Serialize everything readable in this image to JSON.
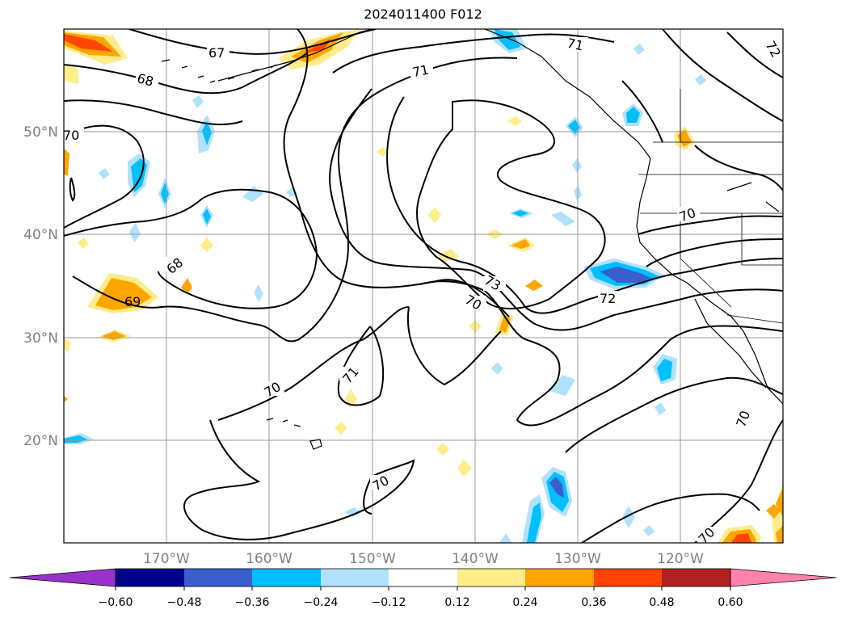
{
  "title": "2024011400 F012",
  "map": {
    "projection": "equirectangular",
    "lon_range": [
      -180,
      -110
    ],
    "lat_range": [
      10,
      60
    ],
    "lat_labels": [
      "50°N",
      "40°N",
      "30°N",
      "20°N"
    ],
    "lon_labels": [
      "170°W",
      "160°W",
      "150°W",
      "140°W",
      "130°W",
      "120°W"
    ],
    "grid": true,
    "contour_labels": [
      "67",
      "68",
      "71",
      "70",
      "68",
      "69",
      "71",
      "70",
      "73",
      "70",
      "72",
      "71",
      "70",
      "70",
      "70",
      "70",
      "72"
    ]
  },
  "colorbar": {
    "ticks": [
      "−0.60",
      "−0.48",
      "−0.36",
      "−0.24",
      "−0.12",
      "0.12",
      "0.24",
      "0.36",
      "0.48",
      "0.60"
    ],
    "colors": [
      "#9932CC",
      "#00008B",
      "#3A5FCD",
      "#00BFFF",
      "#B0E2FF",
      "#FFFFFF",
      "#FFEC8B",
      "#FFA500",
      "#FF4500",
      "#B22222",
      "#FF82AB"
    ],
    "extend": "both"
  }
}
